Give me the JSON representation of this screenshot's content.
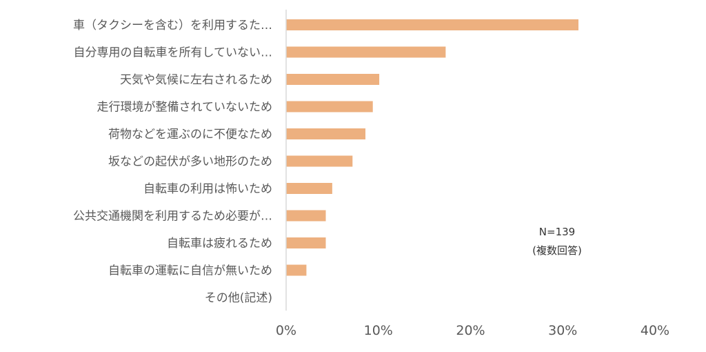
{
  "chart_data": {
    "type": "bar",
    "orientation": "horizontal",
    "categories": [
      "車（タクシーを含む）を利用するた…",
      "自分専用の自転車を所有していない…",
      "天気や気候に左右されるため",
      "走行環境が整備されていないため",
      "荷物などを運ぶのに不便なため",
      "坂などの起伏が多い地形のため",
      "自転車の利用は怖いため",
      "公共交通機関を利用するため必要が…",
      "自転車は疲れるため",
      "自転車の運転に自信が無いため",
      "その他(記述)"
    ],
    "values": [
      31.7,
      17.3,
      10.1,
      9.4,
      8.6,
      7.2,
      5.0,
      4.3,
      4.3,
      2.2,
      0.0
    ],
    "xlim": [
      0,
      40
    ],
    "ticks": [
      "0%",
      "10%",
      "20%",
      "30%",
      "40%"
    ],
    "tick_values": [
      0,
      10,
      20,
      30,
      40
    ],
    "bar_color": "#EDB07F",
    "grid": false,
    "note_line1": "N=139",
    "note_line2": "(複数回答)"
  }
}
